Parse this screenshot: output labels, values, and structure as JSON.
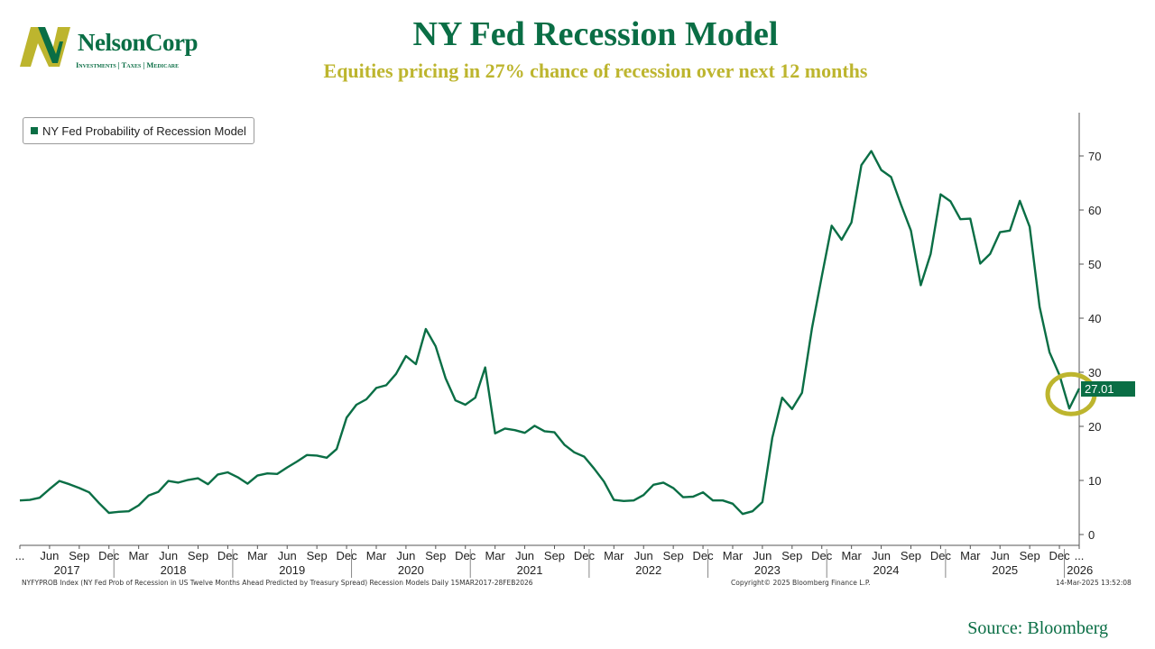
{
  "header": {
    "title": "NY Fed Recession Model",
    "subtitle": "Equities pricing in 27% chance of recession over next 12 months"
  },
  "logo": {
    "name": "NelsonCorp",
    "tagline": "Investments | Taxes | Medicare",
    "colors": {
      "green": "#0a6e45",
      "olive": "#bdb52e"
    }
  },
  "footer": {
    "index_note": "NYFYPROB Index (NY Fed Prob of Recession in US Twelve Months Ahead Predicted by Treasury Spread) Recession Models  Daily 15MAR2017-28FEB2026",
    "copyright": "Copyright© 2025 Bloomberg Finance L.P.",
    "timestamp": "14-Mar-2025 13:52:08",
    "source": "Source: Bloomberg"
  },
  "chart_data": {
    "type": "line",
    "title": "NY Fed Recession Model",
    "subtitle": "Equities pricing in 27% chance of recession over next 12 months",
    "xlabel": "",
    "ylabel": "",
    "ylim": [
      -2,
      78
    ],
    "yticks": [
      0,
      10,
      20,
      30,
      40,
      50,
      60,
      70
    ],
    "y_axis_side": "right",
    "grid": false,
    "legend_position": "top-left",
    "line_color": "#0a6e45",
    "highlight_color": "#bdb52e",
    "last_value_label": "27.01",
    "x_months": [
      "2017-03",
      "2017-04",
      "2017-05",
      "2017-06",
      "2017-07",
      "2017-08",
      "2017-09",
      "2017-10",
      "2017-11",
      "2017-12",
      "2018-01",
      "2018-02",
      "2018-03",
      "2018-04",
      "2018-05",
      "2018-06",
      "2018-07",
      "2018-08",
      "2018-09",
      "2018-10",
      "2018-11",
      "2018-12",
      "2019-01",
      "2019-02",
      "2019-03",
      "2019-04",
      "2019-05",
      "2019-06",
      "2019-07",
      "2019-08",
      "2019-09",
      "2019-10",
      "2019-11",
      "2019-12",
      "2020-01",
      "2020-02",
      "2020-03",
      "2020-04",
      "2020-05",
      "2020-06",
      "2020-07",
      "2020-08",
      "2020-09",
      "2020-10",
      "2020-11",
      "2020-12",
      "2021-01",
      "2021-02",
      "2021-03",
      "2021-04",
      "2021-05",
      "2021-06",
      "2021-07",
      "2021-08",
      "2021-09",
      "2021-10",
      "2021-11",
      "2021-12",
      "2022-01",
      "2022-02",
      "2022-03",
      "2022-04",
      "2022-05",
      "2022-06",
      "2022-07",
      "2022-08",
      "2022-09",
      "2022-10",
      "2022-11",
      "2022-12",
      "2023-01",
      "2023-02",
      "2023-03",
      "2023-04",
      "2023-05",
      "2023-06",
      "2023-07",
      "2023-08",
      "2023-09",
      "2023-10",
      "2023-11",
      "2023-12",
      "2024-01",
      "2024-02",
      "2024-03",
      "2024-04",
      "2024-05",
      "2024-06",
      "2024-07",
      "2024-08",
      "2024-09",
      "2024-10",
      "2024-11",
      "2024-12",
      "2025-01",
      "2025-02",
      "2025-03",
      "2025-04",
      "2025-05",
      "2025-06",
      "2025-07",
      "2025-08",
      "2025-09",
      "2025-10",
      "2025-11",
      "2025-12",
      "2026-01",
      "2026-02"
    ],
    "series": [
      {
        "name": "NY Fed Probability of Recession Model",
        "values": [
          6.3,
          6.4,
          6.8,
          8.4,
          9.9,
          9.3,
          8.6,
          7.8,
          5.8,
          4.0,
          4.2,
          4.3,
          5.4,
          7.2,
          7.9,
          9.9,
          9.6,
          10.1,
          10.4,
          9.3,
          11.1,
          11.5,
          10.6,
          9.4,
          10.9,
          11.3,
          11.2,
          12.4,
          13.5,
          14.7,
          14.6,
          14.2,
          15.8,
          21.6,
          24.0,
          25.0,
          27.1,
          27.6,
          29.7,
          33.0,
          31.5,
          38.0,
          34.8,
          28.9,
          24.8,
          24.0,
          25.3,
          30.9,
          18.7,
          19.6,
          19.3,
          18.8,
          20.1,
          19.1,
          18.9,
          16.6,
          15.2,
          14.4,
          12.2,
          9.8,
          6.4,
          6.2,
          6.3,
          7.3,
          9.2,
          9.6,
          8.6,
          6.9,
          7.0,
          7.8,
          6.3,
          6.3,
          5.7,
          3.8,
          4.3,
          6.0,
          17.9,
          25.3,
          23.2,
          26.2,
          38.1,
          47.7,
          57.1,
          54.5,
          57.7,
          68.3,
          70.9,
          67.4,
          66.1,
          61.0,
          56.2,
          46.1,
          51.9,
          62.9,
          61.6,
          58.3,
          58.4,
          50.1,
          51.9,
          55.9,
          56.2,
          61.7,
          56.9,
          42.1,
          33.7,
          29.5,
          23.3,
          27.0
        ]
      }
    ],
    "x_tick_labels": [
      {
        "month": "2017-03",
        "label": "..."
      },
      {
        "month": "2017-06",
        "label": "Jun"
      },
      {
        "month": "2017-09",
        "label": "Sep"
      },
      {
        "month": "2017-12",
        "label": "Dec"
      },
      {
        "month": "2018-03",
        "label": "Mar"
      },
      {
        "month": "2018-06",
        "label": "Jun"
      },
      {
        "month": "2018-09",
        "label": "Sep"
      },
      {
        "month": "2018-12",
        "label": "Dec"
      },
      {
        "month": "2019-03",
        "label": "Mar"
      },
      {
        "month": "2019-06",
        "label": "Jun"
      },
      {
        "month": "2019-09",
        "label": "Sep"
      },
      {
        "month": "2019-12",
        "label": "Dec"
      },
      {
        "month": "2020-03",
        "label": "Mar"
      },
      {
        "month": "2020-06",
        "label": "Jun"
      },
      {
        "month": "2020-09",
        "label": "Sep"
      },
      {
        "month": "2020-12",
        "label": "Dec"
      },
      {
        "month": "2021-03",
        "label": "Mar"
      },
      {
        "month": "2021-06",
        "label": "Jun"
      },
      {
        "month": "2021-09",
        "label": "Sep"
      },
      {
        "month": "2021-12",
        "label": "Dec"
      },
      {
        "month": "2022-03",
        "label": "Mar"
      },
      {
        "month": "2022-06",
        "label": "Jun"
      },
      {
        "month": "2022-09",
        "label": "Sep"
      },
      {
        "month": "2022-12",
        "label": "Dec"
      },
      {
        "month": "2023-03",
        "label": "Mar"
      },
      {
        "month": "2023-06",
        "label": "Jun"
      },
      {
        "month": "2023-09",
        "label": "Sep"
      },
      {
        "month": "2023-12",
        "label": "Dec"
      },
      {
        "month": "2024-03",
        "label": "Mar"
      },
      {
        "month": "2024-06",
        "label": "Jun"
      },
      {
        "month": "2024-09",
        "label": "Sep"
      },
      {
        "month": "2024-12",
        "label": "Dec"
      },
      {
        "month": "2025-03",
        "label": "Mar"
      },
      {
        "month": "2025-06",
        "label": "Jun"
      },
      {
        "month": "2025-09",
        "label": "Sep"
      },
      {
        "month": "2025-12",
        "label": "Dec"
      },
      {
        "month": "2026-02",
        "label": "..."
      }
    ],
    "year_labels": [
      "2017",
      "2018",
      "2019",
      "2020",
      "2021",
      "2022",
      "2023",
      "2024",
      "2025",
      "2026"
    ],
    "year_boundaries": [
      "2018-01",
      "2019-01",
      "2020-01",
      "2021-01",
      "2022-01",
      "2023-01",
      "2024-01",
      "2025-01",
      "2026-01"
    ]
  }
}
